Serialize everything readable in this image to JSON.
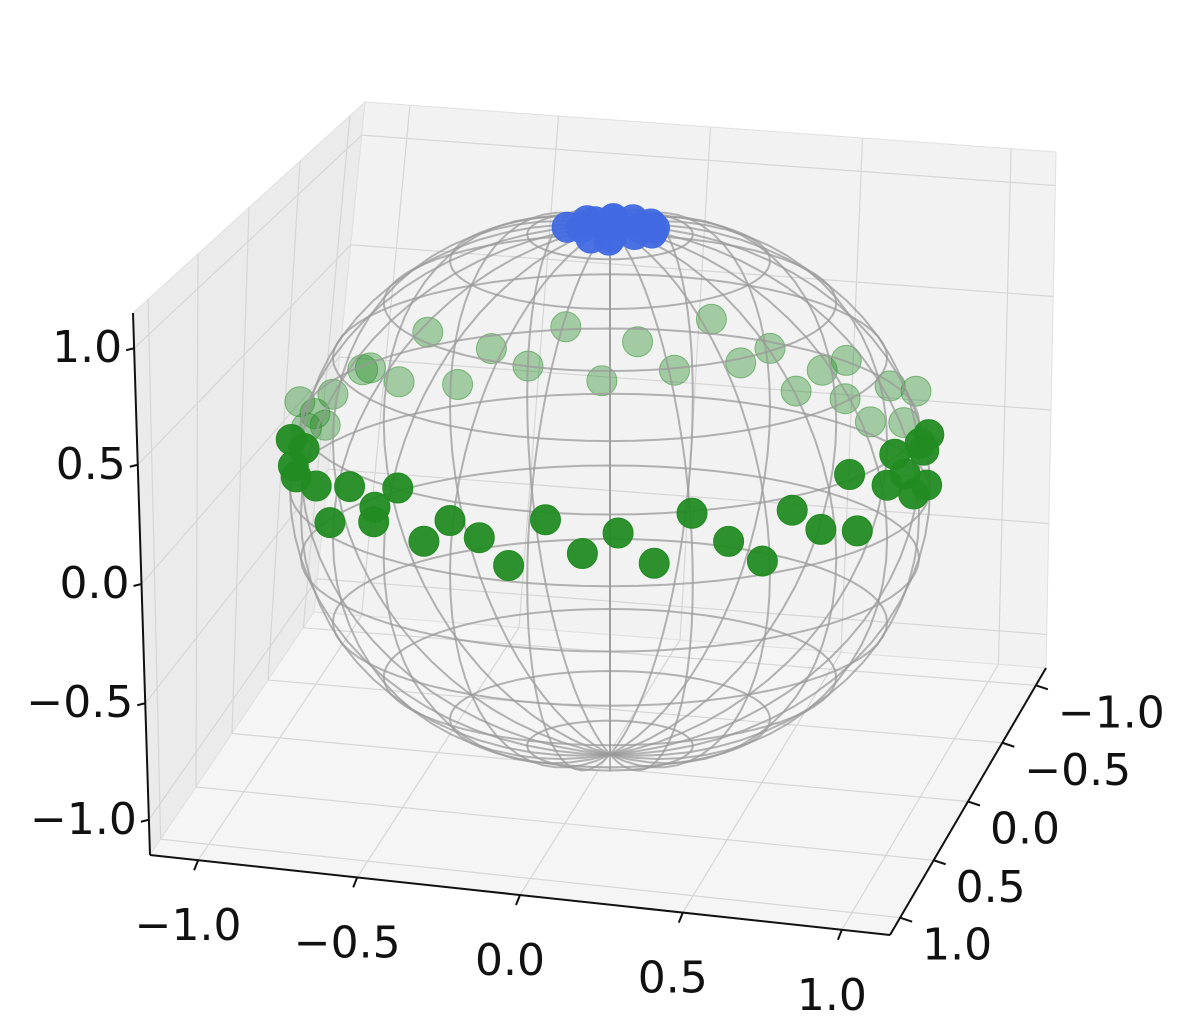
{
  "chart_data": {
    "type": "scatter",
    "title": "",
    "xlabel": "",
    "ylabel": "",
    "zlabel": "",
    "grid": true,
    "xlim": [
      -1.15,
      1.15
    ],
    "ylim": [
      -1.15,
      1.15
    ],
    "zlim": [
      -1.15,
      1.15
    ],
    "x_ticks": [
      "−1.0",
      "−0.5",
      "0.0",
      "0.5",
      "1.0"
    ],
    "y_ticks": [
      "−1.0",
      "−0.5",
      "0.0",
      "0.5",
      "1.0"
    ],
    "z_ticks": [
      "−1.0",
      "−0.5",
      "0.0",
      "0.5",
      "1.0"
    ],
    "wireframe": {
      "shape": "unit-sphere",
      "color": "#999999"
    },
    "series": [
      {
        "color": "#4169e1",
        "description": "cluster at north pole",
        "x": [
          0.0,
          0.08,
          -0.08,
          0.05,
          -0.04,
          0.1,
          -0.1,
          0.02,
          0.12,
          -0.12,
          0.06,
          -0.06,
          0.0,
          0.14,
          -0.02,
          0.09
        ],
        "y": [
          0.0,
          0.05,
          -0.04,
          -0.08,
          0.09,
          -0.02,
          0.03,
          0.11,
          0.07,
          -0.06,
          -0.11,
          0.01,
          -0.12,
          0.02,
          0.06,
          0.1
        ],
        "z": [
          1.0,
          0.99,
          0.99,
          0.99,
          0.99,
          0.99,
          0.99,
          0.99,
          0.99,
          0.99,
          0.99,
          1.0,
          0.99,
          0.99,
          1.0,
          0.99
        ]
      },
      {
        "color": "#228b22",
        "description": "ring near equator",
        "x": [
          1.0,
          0.98,
          0.94,
          0.9,
          0.85,
          0.78,
          0.7,
          0.61,
          0.52,
          0.42,
          0.31,
          0.2,
          0.1,
          0.0,
          -0.1,
          -0.2,
          -0.31,
          -0.42,
          -0.52,
          -0.61,
          -0.7,
          -0.78,
          -0.85,
          -0.9,
          -0.94,
          -0.98,
          -1.0,
          -0.98,
          -0.94,
          -0.9,
          -0.85,
          -0.78,
          -0.7,
          -0.61,
          -0.52,
          -0.42,
          -0.31,
          -0.2,
          -0.1,
          0.0,
          0.1,
          0.2,
          0.31,
          0.42,
          0.52,
          0.61,
          0.7,
          0.78,
          0.85,
          0.9,
          0.94,
          0.98,
          0.97,
          -0.97,
          0.95,
          -0.95,
          0.92,
          -0.92,
          0.3,
          -0.3
        ],
        "y": [
          0.0,
          0.2,
          0.31,
          0.42,
          0.52,
          0.61,
          0.7,
          0.78,
          0.85,
          0.9,
          0.94,
          0.98,
          0.99,
          1.0,
          0.99,
          0.98,
          0.94,
          0.9,
          0.85,
          0.78,
          0.7,
          0.61,
          0.52,
          0.42,
          0.31,
          0.2,
          0.0,
          -0.2,
          -0.31,
          -0.42,
          -0.52,
          -0.61,
          -0.7,
          -0.78,
          -0.85,
          -0.9,
          -0.94,
          -0.98,
          -0.99,
          -1.0,
          -0.99,
          -0.98,
          -0.94,
          -0.9,
          -0.85,
          -0.78,
          -0.7,
          -0.61,
          -0.52,
          -0.42,
          -0.31,
          -0.2,
          0.1,
          -0.1,
          -0.1,
          0.1,
          0.25,
          -0.25,
          0.95,
          -0.95
        ],
        "z": [
          0.2,
          0.1,
          0.25,
          0.05,
          0.2,
          0.1,
          0.28,
          0.12,
          0.22,
          0.05,
          0.25,
          0.18,
          0.08,
          0.22,
          0.15,
          0.3,
          0.1,
          0.2,
          0.05,
          0.26,
          0.12,
          0.2,
          0.08,
          0.3,
          0.14,
          0.22,
          0.18,
          0.12,
          0.26,
          0.06,
          0.2,
          0.1,
          0.25,
          0.15,
          0.05,
          0.22,
          0.12,
          0.28,
          0.1,
          0.2,
          0.15,
          0.06,
          0.24,
          0.12,
          0.2,
          0.08,
          0.26,
          0.14,
          0.05,
          0.22,
          0.12,
          0.3,
          0.28,
          0.1,
          0.05,
          0.25,
          0.15,
          0.2,
          0.1,
          0.18
        ]
      }
    ]
  }
}
